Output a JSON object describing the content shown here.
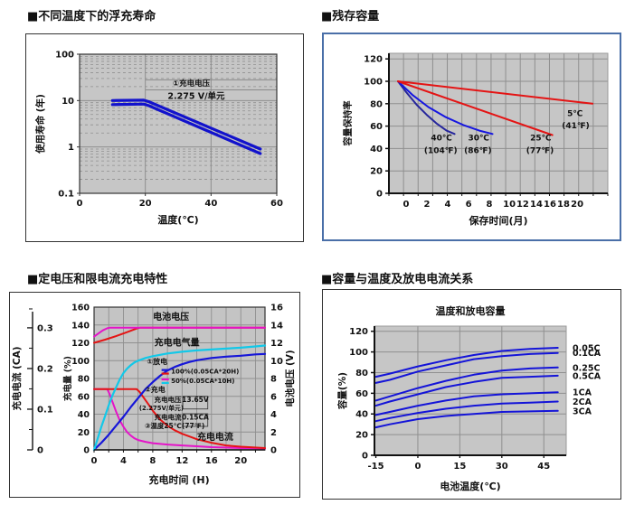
{
  "headings": [
    {
      "text": "■不同温度下的浮充寿命"
    },
    {
      "text": "■残存容量"
    },
    {
      "text": "■定电压和限电流充电特性"
    },
    {
      "text": "■容量与温度及放电电流关系"
    }
  ],
  "colors": {
    "plot_bg": "#c6c6c6",
    "grid": "#8f8f8f",
    "blue": "#1616d8",
    "navy": "#26269c",
    "red": "#e41414",
    "magenta": "#e414c8",
    "cyan": "#12c8e8",
    "band_blue": "#1212cc",
    "panel_border_blue": "#4a6fa8"
  },
  "chart_data": [
    {
      "id": "float-life",
      "type": "line",
      "title": "不同温度下的浮充寿命",
      "xlabel": "温度(℃)",
      "ylabel": "使用寿命 (年)",
      "xlim": [
        0,
        60
      ],
      "ylim_log": [
        0.1,
        100
      ],
      "x_ticks": [
        0,
        20,
        40,
        60
      ],
      "y_ticks": [
        "100",
        "10",
        "1",
        "0.1"
      ],
      "grid": "dashed minor log grid, solid vertical at 20 and 40",
      "annotation": {
        "row1": "①充电电压",
        "row2": "2.275 V/单元",
        "x_range": [
          20,
          60
        ],
        "y_lines": [
          28,
          17
        ],
        "center_x": 34
      },
      "series": [
        {
          "name": "float-life-upper",
          "color": "#1212cc",
          "width": 3.2,
          "points": [
            [
              10,
              10
            ],
            [
              19.5,
              10.2
            ],
            [
              21,
              9.5
            ],
            [
              55,
              0.9
            ]
          ]
        },
        {
          "name": "float-life-lower",
          "color": "#1212cc",
          "width": 3.2,
          "points": [
            [
              10,
              8.2
            ],
            [
              19.5,
              8.4
            ],
            [
              21,
              7.8
            ],
            [
              55,
              0.72
            ]
          ]
        }
      ]
    },
    {
      "id": "residual",
      "type": "line",
      "title": "残存容量",
      "xlabel": "保存时间(月)",
      "ylabel": "容量保持率",
      "xlim_columns": [
        0,
        15
      ],
      "ylim": [
        0,
        125
      ],
      "y_ticks": [
        0,
        20,
        40,
        60,
        80,
        100,
        120
      ],
      "x_tick_labels": [
        {
          "label": "0",
          "pos": 1.18
        },
        {
          "label": "2",
          "pos": 2.6
        },
        {
          "label": "4",
          "pos": 4.03
        },
        {
          "label": "6",
          "pos": 5.46
        },
        {
          "label": "8",
          "pos": 6.88
        },
        {
          "label": "10",
          "pos": 8.25
        },
        {
          "label": "12",
          "pos": 9.17
        },
        {
          "label": "14",
          "pos": 10.1
        },
        {
          "label": "16",
          "pos": 11.03
        },
        {
          "label": "18",
          "pos": 11.96
        },
        {
          "label": "20",
          "pos": 12.9
        }
      ],
      "series": [
        {
          "name": "temp-40C",
          "color": "#26269c",
          "width": 2,
          "points": [
            [
              0.62,
              100
            ],
            [
              1.2,
              90
            ],
            [
              1.9,
              79
            ],
            [
              2.6,
              70
            ],
            [
              3.3,
              62
            ],
            [
              3.95,
              56
            ],
            [
              4.5,
              53
            ]
          ]
        },
        {
          "name": "temp-30C",
          "color": "#1616e0",
          "width": 2,
          "points": [
            [
              0.62,
              100
            ],
            [
              1.6,
              88
            ],
            [
              2.7,
              77
            ],
            [
              3.9,
              68
            ],
            [
              5.1,
              61
            ],
            [
              6.2,
              56
            ],
            [
              7.1,
              53
            ]
          ]
        },
        {
          "name": "temp-25C",
          "color": "#e41414",
          "width": 2,
          "points": [
            [
              0.62,
              100
            ],
            [
              11.2,
              52
            ]
          ]
        },
        {
          "name": "temp-5C",
          "color": "#e41414",
          "width": 2,
          "points": [
            [
              0.62,
              100
            ],
            [
              13.95,
              80
            ]
          ]
        }
      ],
      "point_labels": [
        {
          "text": "40℃",
          "x": 3.6,
          "y": 47
        },
        {
          "text": "(104℉)",
          "x": 3.55,
          "y": 36
        },
        {
          "text": "30℃",
          "x": 6.15,
          "y": 47
        },
        {
          "text": "(86℉)",
          "x": 6.1,
          "y": 36
        },
        {
          "text": "25℃",
          "x": 10.4,
          "y": 47
        },
        {
          "text": "(77℉)",
          "x": 10.35,
          "y": 36
        },
        {
          "text": "5℃",
          "x": 12.75,
          "y": 69
        },
        {
          "text": "(41℉)",
          "x": 12.8,
          "y": 58
        }
      ]
    },
    {
      "id": "charging",
      "type": "line",
      "title": "定电压和限电流充电特性",
      "xlabel": "充电时间 (H)",
      "xlim": [
        0,
        23.3
      ],
      "x_ticks": [
        0,
        4,
        8,
        12,
        16,
        20
      ],
      "x_grid_step": 2,
      "axes": {
        "left_outer": {
          "label": "充电电流 (CA)",
          "ticks": [
            "0",
            "0.1",
            "0.2",
            "0.3"
          ],
          "tick_values": [
            0,
            0.1,
            0.2,
            0.3
          ],
          "pct_per_ca": 456
        },
        "left_inner": {
          "label": "充电量 (%)",
          "ticks": [
            0,
            20,
            40,
            60,
            80,
            100,
            120,
            140,
            160
          ]
        },
        "right": {
          "label": "电池电压 (V)",
          "ticks": [
            0,
            2,
            4,
            6,
            8,
            10,
            12,
            14,
            16
          ],
          "pct_per_volt": 10
        }
      },
      "in_plot_labels": [
        {
          "text": "电池电压",
          "x": 10.5,
          "y": 146,
          "fs": 10
        },
        {
          "text": "充电电气量",
          "x": 11.3,
          "y": 117,
          "fs": 10
        },
        {
          "text": "充电电流",
          "x": 16.5,
          "y": 11,
          "fs": 10
        }
      ],
      "legend": {
        "item1_title": "①放电",
        "rows": [
          {
            "swatch": [
              "#1616d8",
              "#e41414"
            ],
            "text": "100%(0.05CA*20H)"
          },
          {
            "swatch": [
              "#e414c8",
              "#12c8e8"
            ],
            "text": "50%(0.05CA*10H)"
          }
        ],
        "item2_title": "②充电",
        "charge_voltage_label": "充电电压",
        "charge_voltage_value": "13.65V",
        "charge_voltage_note": "(2.275V/单元)",
        "charge_current_label": "充电电流",
        "charge_current_value": "0.15CA",
        "item3": "③温度25℃(77℉)"
      },
      "series": [
        {
          "name": "current-50pct",
          "color": "#e414c8",
          "width": 2,
          "points": [
            [
              0,
              68
            ],
            [
              1.8,
              68
            ],
            [
              2.1,
              63
            ],
            [
              2.5,
              54
            ],
            [
              3,
              43
            ],
            [
              3.5,
              33
            ],
            [
              4,
              26
            ],
            [
              4.5,
              20
            ],
            [
              5,
              16
            ],
            [
              5.5,
              13
            ],
            [
              6,
              11
            ],
            [
              7,
              9
            ],
            [
              8,
              7.5
            ],
            [
              10,
              6
            ],
            [
              12,
              5
            ],
            [
              14,
              4
            ],
            [
              16,
              3
            ],
            [
              18,
              2.5
            ],
            [
              20,
              2
            ],
            [
              23.3,
              1.5
            ]
          ]
        },
        {
          "name": "current-100pct",
          "color": "#e41414",
          "width": 2,
          "points": [
            [
              0,
              68
            ],
            [
              5.8,
              68
            ],
            [
              6.2,
              65
            ],
            [
              6.8,
              58
            ],
            [
              7.5,
              50
            ],
            [
              8,
              44
            ],
            [
              9,
              34
            ],
            [
              10,
              27
            ],
            [
              11,
              22
            ],
            [
              12,
              18
            ],
            [
              13,
              15
            ],
            [
              14,
              12
            ],
            [
              16,
              8
            ],
            [
              18,
              5
            ],
            [
              20,
              3.5
            ],
            [
              23.3,
              2
            ]
          ]
        },
        {
          "name": "charge-qty-100pct",
          "color": "#1616d8",
          "width": 2.2,
          "points": [
            [
              0,
              0
            ],
            [
              1,
              8
            ],
            [
              2,
              17
            ],
            [
              3,
              27
            ],
            [
              4,
              37
            ],
            [
              5,
              48
            ],
            [
              6,
              58
            ],
            [
              7,
              68
            ],
            [
              8,
              76
            ],
            [
              9,
              83
            ],
            [
              10,
              89
            ],
            [
              11,
              93
            ],
            [
              12,
              96
            ],
            [
              13,
              98.5
            ],
            [
              14,
              100.5
            ],
            [
              16,
              103
            ],
            [
              18,
              104.5
            ],
            [
              20,
              105.5
            ],
            [
              22,
              107
            ],
            [
              23.3,
              107.5
            ]
          ]
        },
        {
          "name": "charge-qty-50pct",
          "color": "#12c8e8",
          "width": 2.2,
          "points": [
            [
              0,
              0
            ],
            [
              0.5,
              13
            ],
            [
              1,
              26
            ],
            [
              1.5,
              38
            ],
            [
              2,
              50
            ],
            [
              2.5,
              61
            ],
            [
              3,
              70
            ],
            [
              3.5,
              79
            ],
            [
              4,
              86
            ],
            [
              4.5,
              91
            ],
            [
              5,
              95
            ],
            [
              5.5,
              98
            ],
            [
              6,
              100
            ],
            [
              7,
              103
            ],
            [
              8,
              105
            ],
            [
              10,
              108
            ],
            [
              12,
              110
            ],
            [
              14,
              111.5
            ],
            [
              16,
              112.5
            ],
            [
              18,
              113.5
            ],
            [
              20,
              114.5
            ],
            [
              22,
              116
            ],
            [
              23.3,
              117
            ]
          ]
        },
        {
          "name": "voltage-100pct",
          "color": "#e41414",
          "width": 2,
          "points": [
            [
              0,
              120
            ],
            [
              1.5,
              123.5
            ],
            [
              3,
              127.5
            ],
            [
              4.5,
              132
            ],
            [
              5.8,
              136
            ],
            [
              6.3,
              137
            ],
            [
              23.3,
              137
            ]
          ]
        },
        {
          "name": "voltage-50pct",
          "color": "#e414c8",
          "width": 2,
          "points": [
            [
              0,
              127
            ],
            [
              0.6,
              130.5
            ],
            [
              1.2,
              134
            ],
            [
              1.8,
              136.3
            ],
            [
              2.2,
              137
            ],
            [
              23.3,
              137
            ]
          ]
        }
      ]
    },
    {
      "id": "capacity-temp",
      "type": "line",
      "title": "容量与温度及放电电流关系",
      "inner_title": "温度和放电容量",
      "xlabel": "电池温度(℃)",
      "ylabel": "容量(%)",
      "xlim": [
        -15.5,
        53
      ],
      "ylim": [
        0,
        125
      ],
      "x_ticks": [
        -15,
        0,
        15,
        30,
        45
      ],
      "y_ticks": [
        0,
        20,
        40,
        60,
        80,
        100,
        120
      ],
      "x": [
        -15,
        -10,
        0,
        10,
        20,
        30,
        40,
        50
      ],
      "series_color": "#1414d8",
      "series": [
        {
          "name": "0.05C",
          "values": [
            76,
            79,
            86,
            92,
            97,
            101,
            103,
            104
          ]
        },
        {
          "name": "0.1CA",
          "values": [
            70,
            73,
            81,
            87,
            93,
            96,
            98,
            99
          ]
        },
        {
          "name": "0.25C",
          "values": [
            53,
            57,
            65,
            72,
            78,
            82,
            84,
            85
          ]
        },
        {
          "name": "0.5CA",
          "values": [
            48,
            52,
            59,
            66,
            71,
            75,
            76,
            77
          ]
        },
        {
          "name": "1CA",
          "values": [
            39,
            42,
            48,
            53,
            57,
            59,
            60,
            61
          ]
        },
        {
          "name": "2CA",
          "values": [
            33,
            36,
            41,
            45,
            48,
            50,
            51,
            52
          ]
        },
        {
          "name": "3CA",
          "values": [
            27,
            30,
            35,
            38,
            40,
            42,
            42.5,
            43
          ]
        }
      ]
    }
  ]
}
